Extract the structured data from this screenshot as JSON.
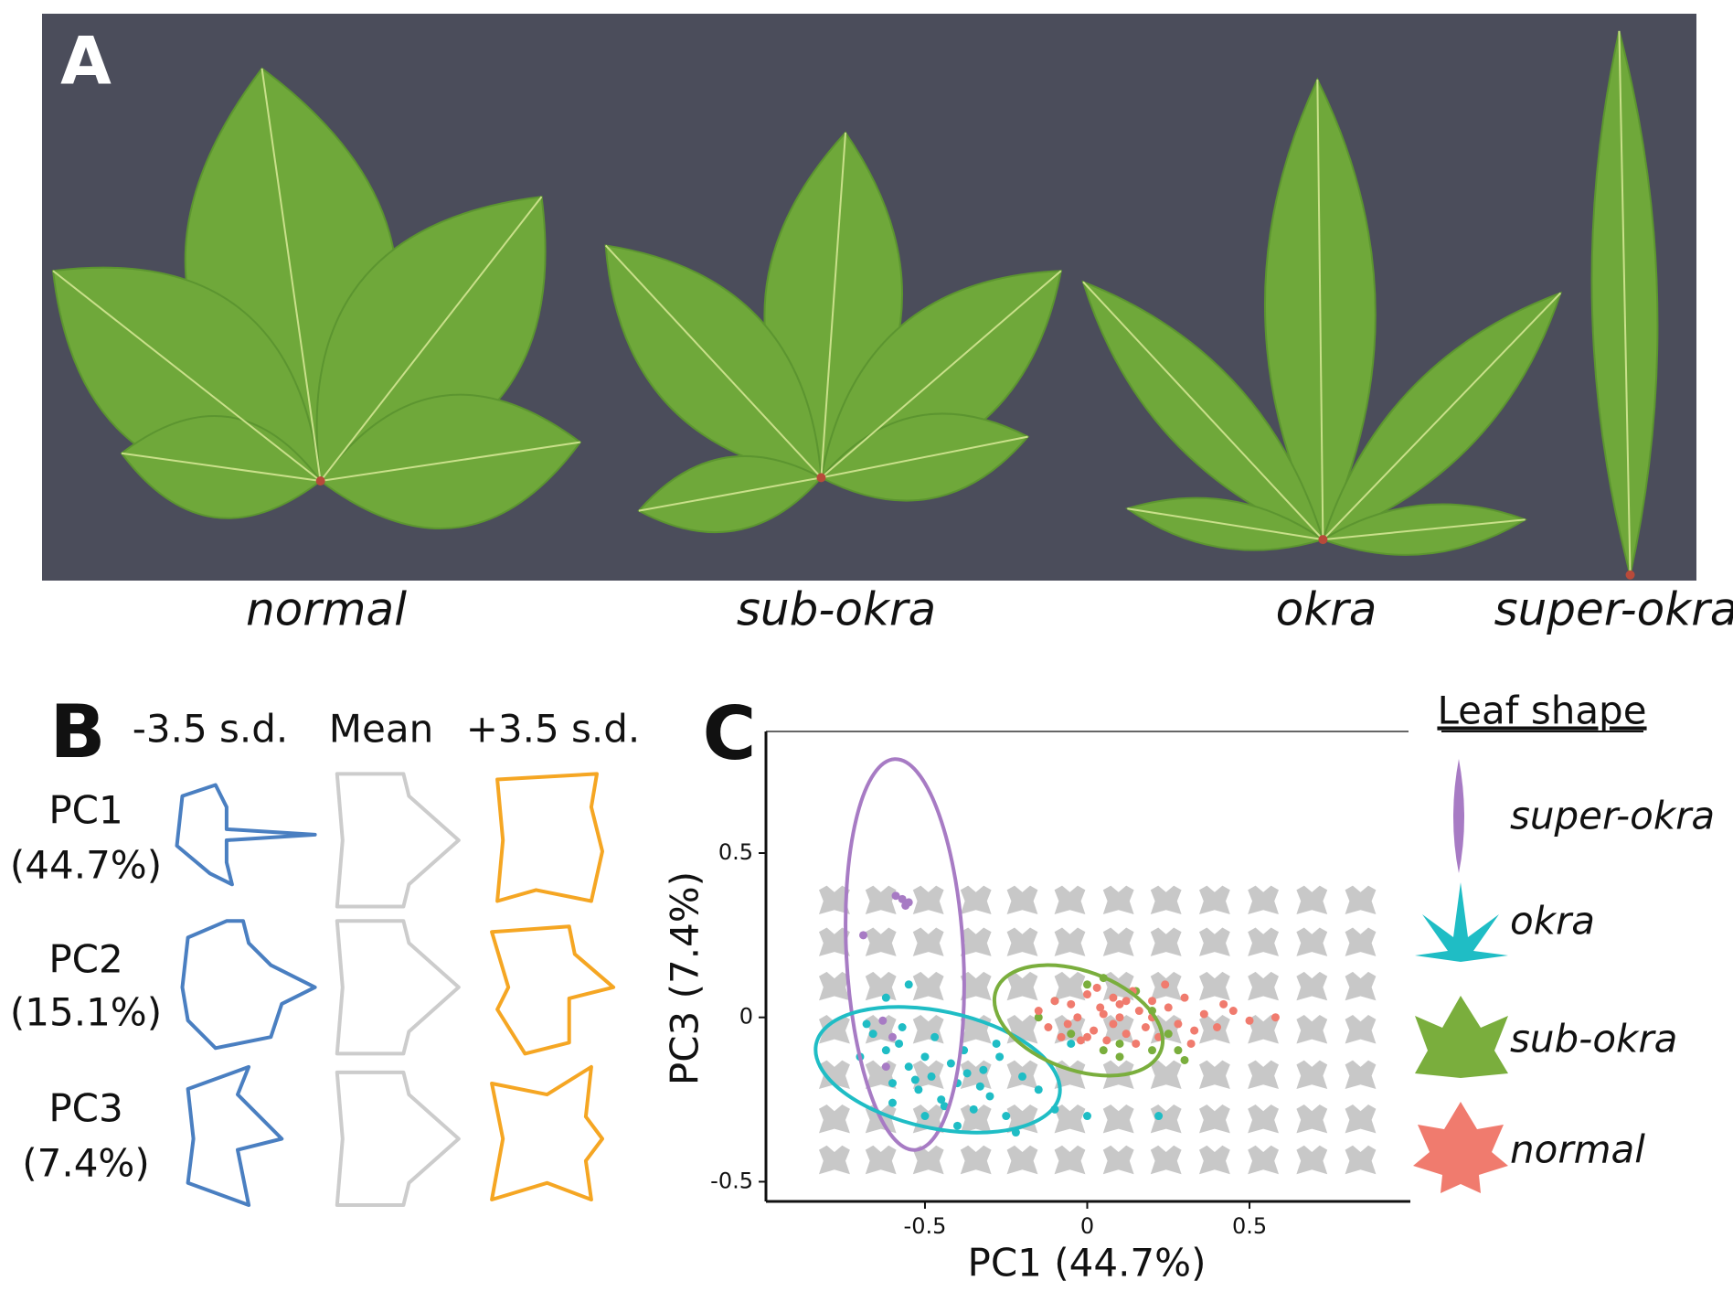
{
  "panel_a": {
    "label": "A",
    "leaves": [
      "normal",
      "sub-okra",
      "okra",
      "super-okra"
    ]
  },
  "panel_b": {
    "label": "B",
    "columns": [
      "-3.5 s.d.",
      "Mean",
      "+3.5 s.d."
    ],
    "rows": [
      {
        "pc": "PC1",
        "variance": "(44.7%)"
      },
      {
        "pc": "PC2",
        "variance": "(15.1%)"
      },
      {
        "pc": "PC3",
        "variance": "(7.4%)"
      }
    ]
  },
  "chart_data": {
    "type": "scatter",
    "panel_label": "C",
    "xlabel": "PC1 (44.7%)",
    "ylabel": "PC3 (7.4%)",
    "legend_title": "Leaf shape",
    "xlim": [
      -0.99,
      0.99
    ],
    "ylim": [
      -0.56,
      0.87
    ],
    "xticks": [
      -0.5,
      0,
      0.5
    ],
    "yticks": [
      -0.5,
      0,
      0.5
    ],
    "series": [
      {
        "name": "super-okra",
        "color": "#a77bc4",
        "x": [
          -0.57,
          -0.55,
          -0.56,
          -0.59,
          -0.69,
          -0.6,
          -0.62,
          -0.63
        ],
        "values": [
          0.36,
          0.35,
          0.34,
          0.37,
          0.25,
          -0.06,
          -0.15,
          -0.01
        ]
      },
      {
        "name": "okra",
        "color": "#1fbdc5",
        "x": [
          -0.7,
          -0.66,
          -0.62,
          -0.6,
          -0.58,
          -0.55,
          -0.52,
          -0.5,
          -0.48,
          -0.45,
          -0.42,
          -0.4,
          -0.38,
          -0.35,
          -0.32,
          -0.3,
          -0.27,
          -0.25,
          -0.2,
          -0.15,
          -0.1,
          -0.05,
          -0.62,
          -0.57,
          -0.53,
          -0.47,
          -0.44,
          -0.37,
          -0.33,
          -0.28,
          -0.6,
          -0.5,
          -0.4,
          -0.22,
          0.0,
          0.22,
          -0.68,
          -0.55
        ],
        "values": [
          -0.12,
          -0.05,
          -0.1,
          -0.2,
          -0.08,
          -0.15,
          -0.22,
          -0.12,
          -0.18,
          -0.25,
          -0.14,
          -0.2,
          -0.1,
          -0.28,
          -0.16,
          -0.24,
          -0.12,
          -0.3,
          -0.18,
          -0.22,
          -0.28,
          -0.08,
          0.06,
          -0.03,
          -0.19,
          -0.06,
          -0.27,
          -0.17,
          -0.21,
          -0.08,
          -0.26,
          -0.3,
          -0.33,
          -0.35,
          -0.3,
          -0.3,
          -0.02,
          0.1
        ]
      },
      {
        "name": "sub-okra",
        "color": "#7aae3d",
        "x": [
          -0.1,
          -0.05,
          0.0,
          0.05,
          0.1,
          0.15,
          0.2,
          0.25,
          0.3,
          0.1,
          0.2,
          -0.15,
          0.28,
          0.05
        ],
        "values": [
          0.05,
          -0.05,
          0.1,
          0.12,
          -0.08,
          0.08,
          -0.1,
          -0.05,
          -0.13,
          -0.12,
          0.02,
          0.0,
          -0.1,
          -0.1
        ]
      },
      {
        "name": "normal",
        "color": "#f07b6e",
        "x": [
          -0.15,
          -0.12,
          -0.1,
          -0.08,
          -0.05,
          -0.03,
          0,
          0.02,
          0.04,
          0.06,
          0.08,
          0.1,
          0.12,
          0.14,
          0.16,
          0.18,
          0.2,
          0.22,
          0.25,
          0.28,
          0.3,
          0.33,
          0.36,
          0.4,
          0.45,
          0.5,
          0.58,
          -0.06,
          0.0,
          0.05,
          0.1,
          0.15,
          0.2,
          0.03,
          0.08,
          0.12,
          -0.02,
          0.24,
          0.32,
          0.42
        ],
        "values": [
          0.02,
          -0.03,
          0.05,
          -0.06,
          0.04,
          0.0,
          0.07,
          -0.04,
          0.03,
          -0.07,
          0.06,
          0.0,
          -0.05,
          0.08,
          0.02,
          -0.03,
          0.05,
          -0.06,
          0.03,
          -0.02,
          0.06,
          -0.04,
          0.01,
          -0.03,
          0.02,
          -0.01,
          0.0,
          -0.02,
          -0.06,
          0.01,
          0.04,
          -0.08,
          0.0,
          0.09,
          -0.02,
          0.05,
          -0.07,
          0.1,
          -0.08,
          0.04
        ]
      }
    ]
  }
}
